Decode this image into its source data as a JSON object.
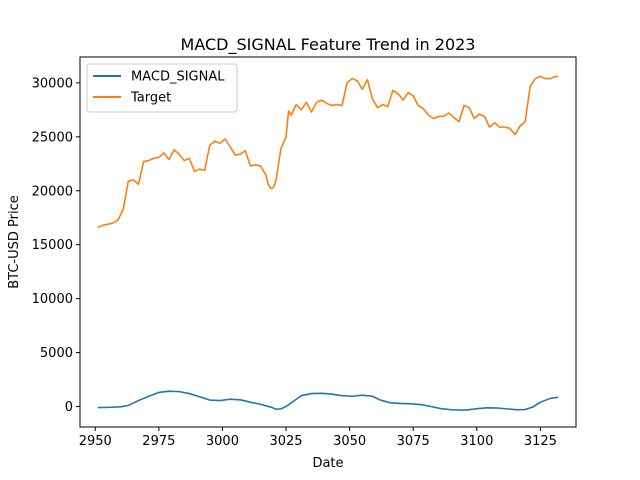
{
  "chart_data": {
    "type": "line",
    "title": "MACD_SIGNAL Feature Trend in 2023",
    "xlabel": "Date",
    "ylabel": "BTC-USD Price",
    "xlim": [
      2944,
      3139
    ],
    "ylim": [
      -1900,
      32400
    ],
    "xticks": [
      2950,
      2975,
      3000,
      3025,
      3050,
      3075,
      3100,
      3125
    ],
    "yticks": [
      0,
      5000,
      10000,
      15000,
      20000,
      25000,
      30000
    ],
    "grid": false,
    "legend_position": "top-left",
    "series": [
      {
        "name": "MACD_SIGNAL",
        "color": "#1f77b4",
        "x": [
          2951,
          2955,
          2960,
          2963,
          2967,
          2971,
          2975,
          2979,
          2983,
          2987,
          2991,
          2995,
          2999,
          3003,
          3007,
          3011,
          3015,
          3019,
          3021,
          3023,
          3025,
          3028,
          3031,
          3035,
          3039,
          3043,
          3047,
          3051,
          3055,
          3059,
          3062,
          3066,
          3070,
          3074,
          3078,
          3082,
          3086,
          3090,
          3094,
          3096,
          3100,
          3104,
          3108,
          3112,
          3116,
          3119,
          3122,
          3125,
          3129,
          3132
        ],
        "values": [
          -100,
          -80,
          -30,
          100,
          550,
          950,
          1300,
          1420,
          1380,
          1200,
          900,
          600,
          550,
          680,
          620,
          400,
          200,
          -50,
          -250,
          -220,
          0,
          500,
          1000,
          1200,
          1220,
          1150,
          1000,
          950,
          1050,
          950,
          600,
          350,
          280,
          250,
          180,
          0,
          -200,
          -300,
          -330,
          -330,
          -200,
          -120,
          -140,
          -220,
          -300,
          -280,
          -50,
          400,
          760,
          850
        ]
      },
      {
        "name": "Target",
        "color": "#ff7f0e",
        "x": [
          2951,
          2953,
          2955,
          2957,
          2959,
          2961,
          2963,
          2965,
          2967,
          2969,
          2971,
          2973,
          2975,
          2977,
          2979,
          2981,
          2983,
          2985,
          2987,
          2989,
          2991,
          2993,
          2995,
          2997,
          2999,
          3001,
          3003,
          3005,
          3007,
          3009,
          3011,
          3013,
          3015,
          3017,
          3018,
          3019,
          3020,
          3021,
          3023,
          3025,
          3026,
          3027,
          3029,
          3031,
          3033,
          3035,
          3037,
          3039,
          3041,
          3043,
          3045,
          3047,
          3049,
          3051,
          3053,
          3055,
          3057,
          3059,
          3061,
          3063,
          3065,
          3067,
          3069,
          3071,
          3073,
          3075,
          3077,
          3079,
          3081,
          3083,
          3085,
          3087,
          3089,
          3091,
          3093,
          3095,
          3097,
          3099,
          3101,
          3103,
          3105,
          3107,
          3109,
          3111,
          3113,
          3115,
          3117,
          3119,
          3121,
          3123,
          3125,
          3127,
          3129,
          3131,
          3132
        ],
        "values": [
          16600,
          16800,
          16900,
          17000,
          17300,
          18300,
          20900,
          21000,
          20600,
          22700,
          22800,
          23000,
          23100,
          23500,
          22900,
          23800,
          23400,
          22800,
          23000,
          21800,
          22000,
          21900,
          24200,
          24600,
          24400,
          24800,
          24100,
          23300,
          23400,
          23700,
          22300,
          22400,
          22300,
          21500,
          20600,
          20200,
          20300,
          20900,
          23900,
          25000,
          27400,
          27000,
          28000,
          27500,
          28200,
          27300,
          28200,
          28400,
          28100,
          27900,
          28000,
          27900,
          30000,
          30400,
          30200,
          29400,
          30300,
          28500,
          27700,
          28000,
          27800,
          29300,
          29000,
          28400,
          29100,
          28800,
          27900,
          27600,
          27000,
          26700,
          26900,
          26900,
          27200,
          26800,
          26400,
          27900,
          27700,
          26700,
          27100,
          26900,
          25900,
          26300,
          25900,
          25900,
          25800,
          25200,
          26000,
          26400,
          29700,
          30400,
          30600,
          30400,
          30400,
          30600,
          30600
        ]
      }
    ]
  }
}
